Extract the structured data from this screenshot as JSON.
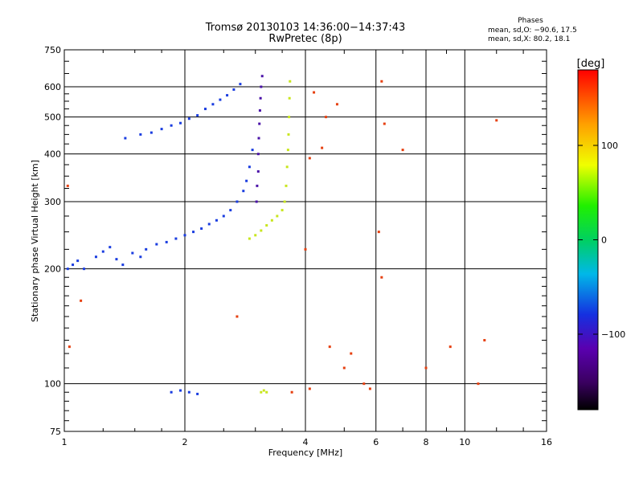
{
  "chart_data": {
    "type": "scatter",
    "title": "Tromsø 20130103 14:36:00−14:37:43",
    "subtitle": "RwPretec (8p)",
    "xlabel": "Frequency [MHz]",
    "ylabel": "Stationary phase Virtual Height [km]",
    "x_scale": "log",
    "y_scale": "log",
    "xlim": [
      1,
      16
    ],
    "ylim": [
      75,
      750
    ],
    "grid": true,
    "x_ticks": [
      1,
      2,
      4,
      6,
      8,
      10,
      16
    ],
    "x_tick_labels": [
      "1",
      "2",
      "4",
      "6",
      "8",
      "10",
      "16"
    ],
    "y_ticks": [
      75,
      100,
      200,
      300,
      400,
      500,
      600,
      750
    ],
    "y_tick_labels": [
      "75",
      "100",
      "200",
      "300",
      "400",
      "500",
      "600",
      "750"
    ],
    "stats": {
      "heading": "Phases",
      "line1": "mean, sd,O: −90.6, 17.5",
      "line2": "mean, sd,X:  80.2, 18.1"
    },
    "colorbar": {
      "unit_label": "[deg]",
      "range": [
        -180,
        180
      ],
      "ticks": [
        100,
        0,
        -100
      ],
      "tick_labels": [
        "100",
        "0",
        "−100"
      ],
      "colormap": "rainbow (black-purple-blue-cyan-green-yellow-red)"
    },
    "series": [
      {
        "mode": "O",
        "phase_deg": -95,
        "color": "#1a3de0",
        "points": [
          [
            1.02,
            200
          ],
          [
            1.05,
            205
          ],
          [
            1.08,
            210
          ],
          [
            1.12,
            200
          ],
          [
            1.2,
            215
          ],
          [
            1.25,
            222
          ],
          [
            1.3,
            228
          ],
          [
            1.35,
            212
          ],
          [
            1.4,
            205
          ],
          [
            1.48,
            220
          ],
          [
            1.55,
            215
          ],
          [
            1.6,
            225
          ],
          [
            1.7,
            232
          ],
          [
            1.8,
            235
          ],
          [
            1.9,
            240
          ],
          [
            2.0,
            245
          ],
          [
            2.1,
            250
          ],
          [
            2.2,
            255
          ],
          [
            2.3,
            262
          ],
          [
            2.4,
            268
          ],
          [
            2.5,
            275
          ],
          [
            2.6,
            285
          ],
          [
            2.7,
            300
          ],
          [
            2.8,
            320
          ],
          [
            2.85,
            340
          ],
          [
            2.9,
            370
          ],
          [
            2.95,
            410
          ],
          [
            1.42,
            440
          ],
          [
            1.55,
            450
          ],
          [
            1.65,
            455
          ],
          [
            1.75,
            465
          ],
          [
            1.85,
            475
          ],
          [
            1.95,
            482
          ],
          [
            2.05,
            495
          ],
          [
            2.15,
            505
          ],
          [
            2.25,
            525
          ],
          [
            2.35,
            540
          ],
          [
            2.45,
            555
          ],
          [
            2.55,
            570
          ],
          [
            2.65,
            590
          ],
          [
            2.75,
            610
          ],
          [
            1.85,
            95
          ],
          [
            1.95,
            96
          ],
          [
            2.05,
            95
          ],
          [
            2.15,
            94
          ]
        ]
      },
      {
        "mode": "O-cusp",
        "phase_deg": -130,
        "color": "#4a12a8",
        "points": [
          [
            3.02,
            300
          ],
          [
            3.03,
            330
          ],
          [
            3.05,
            360
          ],
          [
            3.05,
            400
          ],
          [
            3.06,
            440
          ],
          [
            3.07,
            480
          ],
          [
            3.08,
            520
          ],
          [
            3.09,
            560
          ],
          [
            3.1,
            600
          ],
          [
            3.12,
            640
          ]
        ]
      },
      {
        "mode": "X",
        "phase_deg": 90,
        "color": "#c8e61e",
        "points": [
          [
            2.9,
            240
          ],
          [
            3.0,
            245
          ],
          [
            3.1,
            252
          ],
          [
            3.2,
            260
          ],
          [
            3.3,
            268
          ],
          [
            3.4,
            275
          ],
          [
            3.5,
            285
          ],
          [
            3.55,
            300
          ],
          [
            3.58,
            330
          ],
          [
            3.6,
            370
          ],
          [
            3.62,
            410
          ],
          [
            3.63,
            450
          ],
          [
            3.64,
            500
          ],
          [
            3.65,
            560
          ],
          [
            3.66,
            620
          ],
          [
            3.1,
            95
          ],
          [
            3.15,
            96
          ],
          [
            3.2,
            95
          ]
        ]
      },
      {
        "mode": "scattered",
        "phase_deg": null,
        "color": "#e64010",
        "points": [
          [
            1.02,
            330
          ],
          [
            1.03,
            125
          ],
          [
            1.1,
            165
          ],
          [
            4.0,
            225
          ],
          [
            4.1,
            390
          ],
          [
            4.2,
            580
          ],
          [
            4.4,
            415
          ],
          [
            4.5,
            500
          ],
          [
            4.6,
            125
          ],
          [
            4.8,
            540
          ],
          [
            5.0,
            110
          ],
          [
            5.2,
            120
          ],
          [
            5.6,
            100
          ],
          [
            5.8,
            97
          ],
          [
            6.1,
            250
          ],
          [
            6.2,
            190
          ],
          [
            6.2,
            620
          ],
          [
            6.3,
            480
          ],
          [
            7.0,
            410
          ],
          [
            8.0,
            110
          ],
          [
            9.2,
            125
          ],
          [
            10.8,
            100
          ],
          [
            11.2,
            130
          ],
          [
            12.0,
            490
          ],
          [
            3.7,
            95
          ],
          [
            4.1,
            97
          ],
          [
            2.7,
            150
          ]
        ]
      }
    ]
  }
}
